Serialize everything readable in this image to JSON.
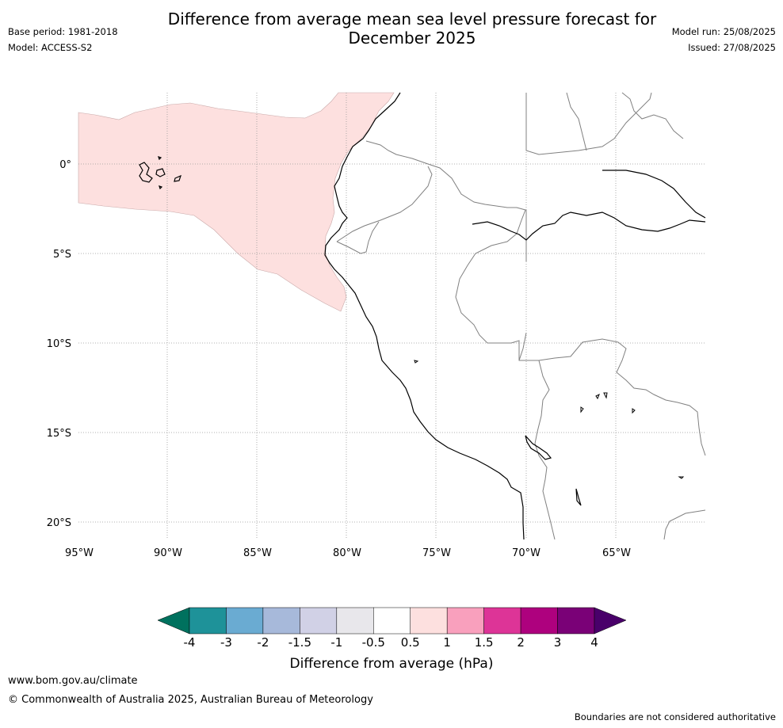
{
  "header": {
    "title_line1": "Difference from average mean sea level pressure forecast for",
    "title_line2": "December 2025",
    "base_period": "Base period: 1981-2018",
    "model": "Model: ACCESS-S2",
    "model_run": "Model run: 25/08/2025",
    "issued": "Issued: 27/08/2025"
  },
  "map": {
    "lon_labels": [
      "95°W",
      "90°W",
      "85°W",
      "80°W",
      "75°W",
      "70°W",
      "65°W"
    ],
    "lat_labels": [
      "0°",
      "5°S",
      "10°S",
      "15°S",
      "20°S"
    ],
    "anomaly_color": "#fde0df",
    "coastline_color": "#000000",
    "border_color": "#808080",
    "grid_color": "#999999"
  },
  "colorbar": {
    "label": "Difference from average (hPa)",
    "ticks": [
      "-4",
      "-3",
      "-2",
      "-1.5",
      "-1",
      "-0.5",
      "0.5",
      "1",
      "1.5",
      "2",
      "3",
      "4"
    ],
    "colors": [
      "#00715e",
      "#1e9299",
      "#6aabd2",
      "#a7b9da",
      "#d1d1e6",
      "#e8e7eb",
      "#ffffff",
      "#fde0df",
      "#f9a0bd",
      "#dd3497",
      "#ae017e",
      "#7a0177",
      "#49006a"
    ]
  },
  "footer": {
    "website": "www.bom.gov.au/climate",
    "copyright": "© Commonwealth of Australia 2025, Australian Bureau of Meteorology",
    "disclaimer": "Boundaries are not considered authoritative"
  }
}
